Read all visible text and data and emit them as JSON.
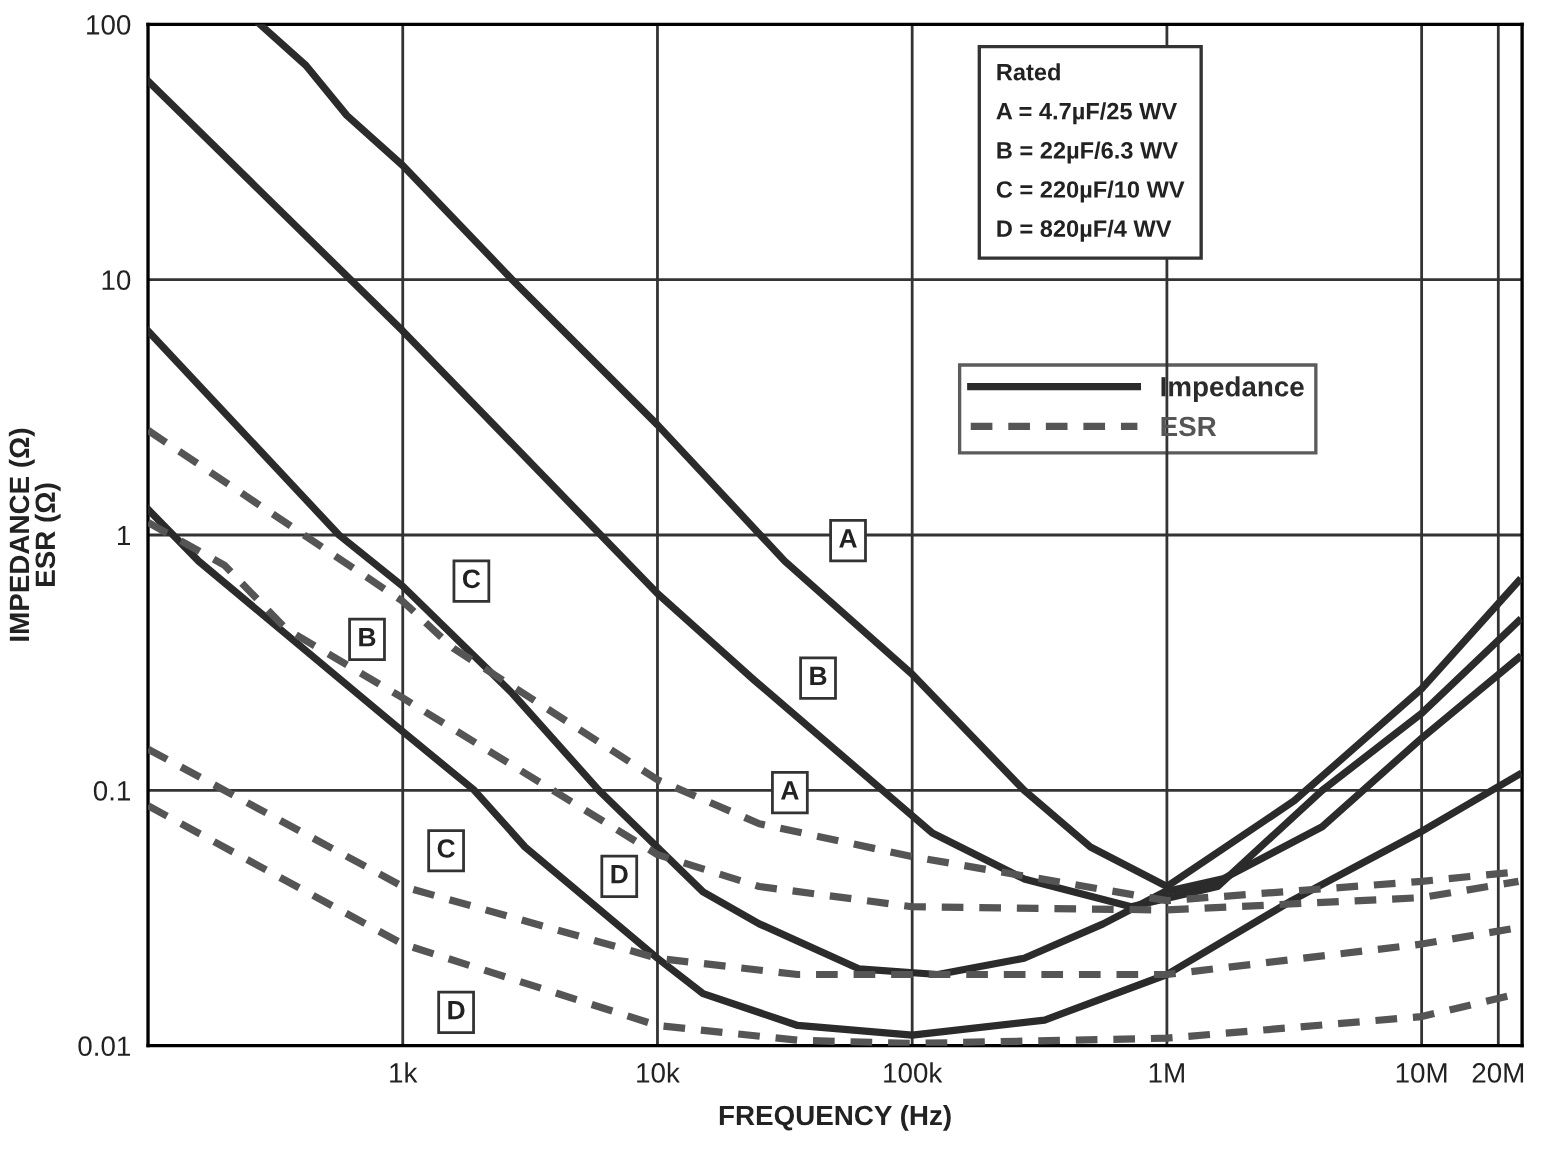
{
  "chart_data": {
    "type": "line",
    "xlabel": "FREQUENCY (Hz)",
    "ylabel": "IMPEDANCE (Ω)\nESR (Ω)",
    "log": "xy",
    "grid": true,
    "legend": "top right",
    "marker": "none",
    "xlim": [
      100,
      24800000
    ],
    "xticks": [
      {
        "value": 1000,
        "label": "1k"
      },
      {
        "value": 10000,
        "label": "10k"
      },
      {
        "value": 100000,
        "label": "100k"
      },
      {
        "value": 1000000,
        "label": "1M"
      },
      {
        "value": 10000000,
        "label": "10M"
      },
      {
        "value": 20000000,
        "label": "20M"
      }
    ],
    "ylim": [
      0.01,
      100
    ],
    "yticks": [
      0.01,
      0.1,
      1,
      10,
      100
    ],
    "series": [
      {
        "name": "Impedance",
        "line_style": "solid",
        "color": "#2b2b2b",
        "x": [
          275,
          417,
          603,
          1000,
          2690,
          10000,
          31600,
          100000,
          275000,
          501000,
          1000000,
          3160000,
          10000000,
          24000000
        ],
        "values": [
          100,
          69,
          44,
          28,
          10,
          2.7,
          0.79,
          0.285,
          0.1,
          0.06,
          0.042,
          0.091,
          0.25,
          0.66
        ]
      },
      {
        "line_style": "solid",
        "color": "#2b2b2b",
        "x": [
          100,
          1000,
          10000,
          24000,
          120000,
          275000,
          724000,
          1580000,
          4070000,
          10000000,
          24000000
        ],
        "values": [
          60,
          6.3,
          0.59,
          0.27,
          0.068,
          0.045,
          0.035,
          0.042,
          0.1,
          0.2,
          0.46
        ]
      },
      {
        "line_style": "solid",
        "color": "#2b2b2b",
        "x": [
          100,
          562,
          1000,
          2690,
          5890,
          15100,
          25100,
          61700,
          126000,
          275000,
          562000,
          977000,
          1660000,
          4070000,
          10000000,
          24000000
        ],
        "values": [
          6.3,
          1.0,
          0.63,
          0.24,
          0.1,
          0.04,
          0.03,
          0.02,
          0.019,
          0.022,
          0.03,
          0.04,
          0.045,
          0.072,
          0.16,
          0.33
        ]
      },
      {
        "line_style": "solid",
        "color": "#2b2b2b",
        "x": [
          100,
          158,
          1000,
          1910,
          3020,
          10000,
          15100,
          35500,
          100000,
          331000,
          1000000,
          3090000,
          10000000,
          24000000
        ],
        "values": [
          1.26,
          0.79,
          0.17,
          0.1,
          0.06,
          0.022,
          0.016,
          0.012,
          0.011,
          0.0126,
          0.019,
          0.037,
          0.069,
          0.115
        ]
      },
      {
        "name": "ESR",
        "line_style": "dashed",
        "color": "#555555",
        "x": [
          100,
          1000,
          1580,
          10000,
          25100,
          100000,
          1000000,
          10000000,
          24000000
        ],
        "values": [
          2.57,
          0.55,
          0.36,
          0.11,
          0.074,
          0.055,
          0.037,
          0.044,
          0.048
        ]
      },
      {
        "line_style": "dashed",
        "color": "#555555",
        "x": [
          100,
          200,
          347,
          1000,
          10000,
          25100,
          100000,
          1000000,
          10000000,
          24000000
        ],
        "values": [
          1.12,
          0.76,
          0.43,
          0.23,
          0.056,
          0.042,
          0.035,
          0.034,
          0.038,
          0.044
        ]
      },
      {
        "line_style": "dashed",
        "color": "#555555",
        "x": [
          100,
          1000,
          10000,
          35500,
          100000,
          1000000,
          10000000,
          24000000
        ],
        "values": [
          0.145,
          0.042,
          0.022,
          0.019,
          0.019,
          0.019,
          0.025,
          0.029
        ]
      },
      {
        "line_style": "dashed",
        "color": "#555555",
        "x": [
          100,
          1000,
          10000,
          35500,
          100000,
          1000000,
          10000000,
          24000000
        ],
        "values": [
          0.087,
          0.025,
          0.012,
          0.0105,
          0.0102,
          0.0107,
          0.013,
          0.016
        ]
      }
    ],
    "annotations": [
      "Rated",
      "A = 4.7µF/25 WV",
      "B = 22µF/6.3 WV",
      "C = 220µF/10 WV",
      "D = 820µF/4 WV",
      {
        "text": "A",
        "x": 56000,
        "y": 0.95
      },
      {
        "text": "B",
        "x": 42700,
        "y": 0.275
      },
      {
        "text": "A",
        "x": 33100,
        "y": 0.098
      },
      {
        "text": "C",
        "x": 1860,
        "y": 0.66
      },
      {
        "text": "B",
        "x": 724,
        "y": 0.39
      },
      {
        "text": "C",
        "x": 1480,
        "y": 0.058
      },
      {
        "text": "D",
        "x": 7080,
        "y": 0.046
      },
      {
        "text": "D",
        "x": 1620,
        "y": 0.0135
      }
    ]
  }
}
